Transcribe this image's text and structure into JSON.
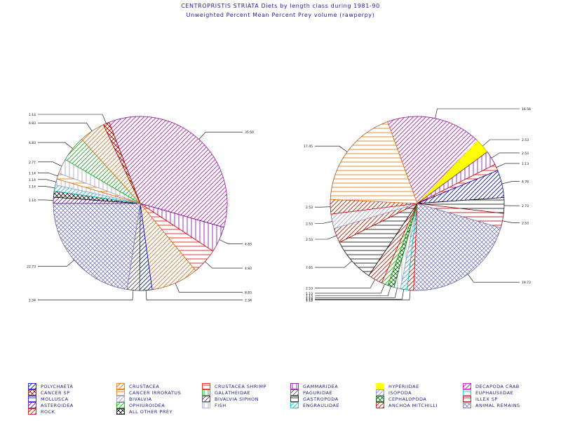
{
  "title": "CENTROPRISTIS STRIATA Diets by length class during 1981-90",
  "subtitle": "Unweighted Percent Mean Percent Prey volume (rawperpy)",
  "legend": [
    {
      "key": "POLYCHAETA",
      "label": "POLYCHAETA",
      "color": "#0000c8",
      "pattern": "diag"
    },
    {
      "key": "CRUSTACEA",
      "label": "CRUSTACEA",
      "color": "#e07000",
      "pattern": "diag"
    },
    {
      "key": "CRUSTACEA_SHRIMP",
      "label": "CRUSTACEA SHRIMP",
      "color": "#e00000",
      "pattern": "horiz"
    },
    {
      "key": "GAMMARIDEA",
      "label": "GAMMARIDEA",
      "color": "#8000a0",
      "pattern": "vert"
    },
    {
      "key": "HYPERIIDAE",
      "label": "HYPERIIDAE",
      "color": "#ffff00",
      "pattern": "solid"
    },
    {
      "key": "DECAPODA_CRAB",
      "label": "DECAPODA CRAB",
      "color": "#d000d0",
      "pattern": "diag"
    },
    {
      "key": "CANCER_SP",
      "label": "CANCER SP",
      "color": "#a00000",
      "pattern": "cross"
    },
    {
      "key": "CANCER_IRRORATUS",
      "label": "CANCER IRRORATUS",
      "color": "#e07000",
      "pattern": "horiz"
    },
    {
      "key": "GALATHEIDAE",
      "label": "GALATHEIDAE",
      "color": "#00a000",
      "pattern": "vert"
    },
    {
      "key": "PAGURIDAE",
      "label": "PAGURIDAE",
      "color": "#505050",
      "pattern": "diag"
    },
    {
      "key": "ISOPODA",
      "label": "ISOPODA",
      "color": "#8080ff",
      "pattern": "diag"
    },
    {
      "key": "EUPHAUSIIDAE",
      "label": "EUPHAUSIIDAE",
      "color": "#00c0c0",
      "pattern": "horiz"
    },
    {
      "key": "MOLLUSCA",
      "label": "MOLLUSCA",
      "color": "#0000c8",
      "pattern": "horiz"
    },
    {
      "key": "BIVALVIA",
      "label": "BIVALVIA",
      "color": "#a0a0c0",
      "pattern": "diag"
    },
    {
      "key": "BIVALVIA_SIPHON",
      "label": "BIVALVIA SIPHON",
      "color": "#404040",
      "pattern": "diag"
    },
    {
      "key": "GASTROPODA",
      "label": "GASTROPODA",
      "color": "#000000",
      "pattern": "horiz"
    },
    {
      "key": "CEPHALOPODA",
      "label": "CEPHALOPODA",
      "color": "#006000",
      "pattern": "cross"
    },
    {
      "key": "ILLEX_SP",
      "label": "ILLEX SP",
      "color": "#a00000",
      "pattern": "horiz"
    },
    {
      "key": "ASTEROIDEA",
      "label": "ASTEROIDEA",
      "color": "#6000a0",
      "pattern": "diag"
    },
    {
      "key": "OPHIUROIDEA",
      "label": "OPHIUROIDEA",
      "color": "#00b000",
      "pattern": "diag"
    },
    {
      "key": "FISH",
      "label": "FISH",
      "color": "#a0a0c0",
      "pattern": "vert"
    },
    {
      "key": "ENGRAULIDAE",
      "label": "ENGRAULIDAE",
      "color": "#00c0c0",
      "pattern": "diag"
    },
    {
      "key": "ANCHOA_MITCHILLI",
      "label": "ANCHOA MITCHILLI",
      "color": "#d00000",
      "pattern": "diag"
    },
    {
      "key": "ANIMAL_REMAINS",
      "label": "ANIMAL REMAINS",
      "color": "#8080c0",
      "pattern": "cross"
    },
    {
      "key": "ROCK",
      "label": "ROCK",
      "color": "#d00000",
      "pattern": "diag"
    },
    {
      "key": "ALL_OTHER_PREY",
      "label": "ALL OTHER PREY",
      "color": "#000000",
      "pattern": "cross"
    }
  ],
  "chart_data": [
    {
      "type": "pie",
      "title": "",
      "start_angle_deg": 111,
      "slices": [
        {
          "category": "DECAPODA_CRAB",
          "value": 35.5,
          "label": "35.50"
        },
        {
          "category": "GAMMARIDEA",
          "value": 4.83,
          "label": "4.83"
        },
        {
          "category": "CRUSTACEA_SHRIMP",
          "value": 4.83,
          "label": "4.83"
        },
        {
          "category": "CRUSTACEA",
          "value": 8.83,
          "label": "8.83"
        },
        {
          "category": "POLYCHAETA",
          "value": 2.34,
          "label": "2.34"
        },
        {
          "category": "BIVALVIA_SIPHON",
          "value": 2.34,
          "label": "2.34"
        },
        {
          "category": "ANIMAL_REMAINS",
          "value": 22.73,
          "label": "22.73"
        },
        {
          "category": "ASTEROIDEA",
          "value": 1.14,
          "label": "1.14"
        },
        {
          "category": "ALL_OTHER_PREY",
          "value": 1.14,
          "label": ""
        },
        {
          "category": "ENGRAULIDAE",
          "value": 1.14,
          "label": "1.14"
        },
        {
          "category": "FISH",
          "value": 1.14,
          "label": "1.14"
        },
        {
          "category": "CANCER_IRRORATUS",
          "value": 1.14,
          "label": "1.14"
        },
        {
          "category": "FISH",
          "value": 2.77,
          "label": "2.77"
        },
        {
          "category": "OPHIUROIDEA",
          "value": 4.83,
          "label": "4.83"
        },
        {
          "category": "CRUSTACEA",
          "value": 4.83,
          "label": "4.83"
        },
        {
          "category": "CANCER_SP",
          "value": 1.14,
          "label": "1.14"
        }
      ]
    },
    {
      "type": "pie",
      "title": "",
      "start_angle_deg": 110,
      "slices": [
        {
          "category": "DECAPODA_CRAB",
          "value": 16.56,
          "label": "16.56"
        },
        {
          "category": "HYPERIIDAE",
          "value": 2.53,
          "label": "2.53"
        },
        {
          "category": "GAMMARIDEA",
          "value": 2.53,
          "label": "2.53"
        },
        {
          "category": "CRUSTACEA_SHRIMP",
          "value": 1.13,
          "label": "1.13"
        },
        {
          "category": "POLYCHAETA",
          "value": 4.76,
          "label": "4.76"
        },
        {
          "category": "GASTROPODA",
          "value": 2.73,
          "label": "2.73"
        },
        {
          "category": "ILLEX_SP",
          "value": 2.53,
          "label": "2.53"
        },
        {
          "category": "ANIMAL_REMAINS",
          "value": 19.73,
          "label": "19.73"
        },
        {
          "category": "ANCHOA_MITCHILLI",
          "value": 1.13,
          "label": "1.13"
        },
        {
          "category": "ENGRAULIDAE",
          "value": 1.13,
          "label": "1.13"
        },
        {
          "category": "FISH",
          "value": 1.13,
          "label": "1.13"
        },
        {
          "category": "CEPHALOPODA",
          "value": 1.13,
          "label": "1.13"
        },
        {
          "category": "OPHIUROIDEA",
          "value": 1.13,
          "label": "1.13"
        },
        {
          "category": "ROCK",
          "value": 2.53,
          "label": "2.53"
        },
        {
          "category": "GASTROPODA",
          "value": 7.65,
          "label": "7.65"
        },
        {
          "category": "ROCK",
          "value": 2.53,
          "label": "2.53"
        },
        {
          "category": "BIVALVIA",
          "value": 2.53,
          "label": "2.53"
        },
        {
          "category": "ANCHOA_MITCHILLI",
          "value": 2.53,
          "label": "2.53"
        },
        {
          "category": "CANCER_IRRORATUS",
          "value": 17.45,
          "label": "17.45"
        }
      ]
    }
  ]
}
